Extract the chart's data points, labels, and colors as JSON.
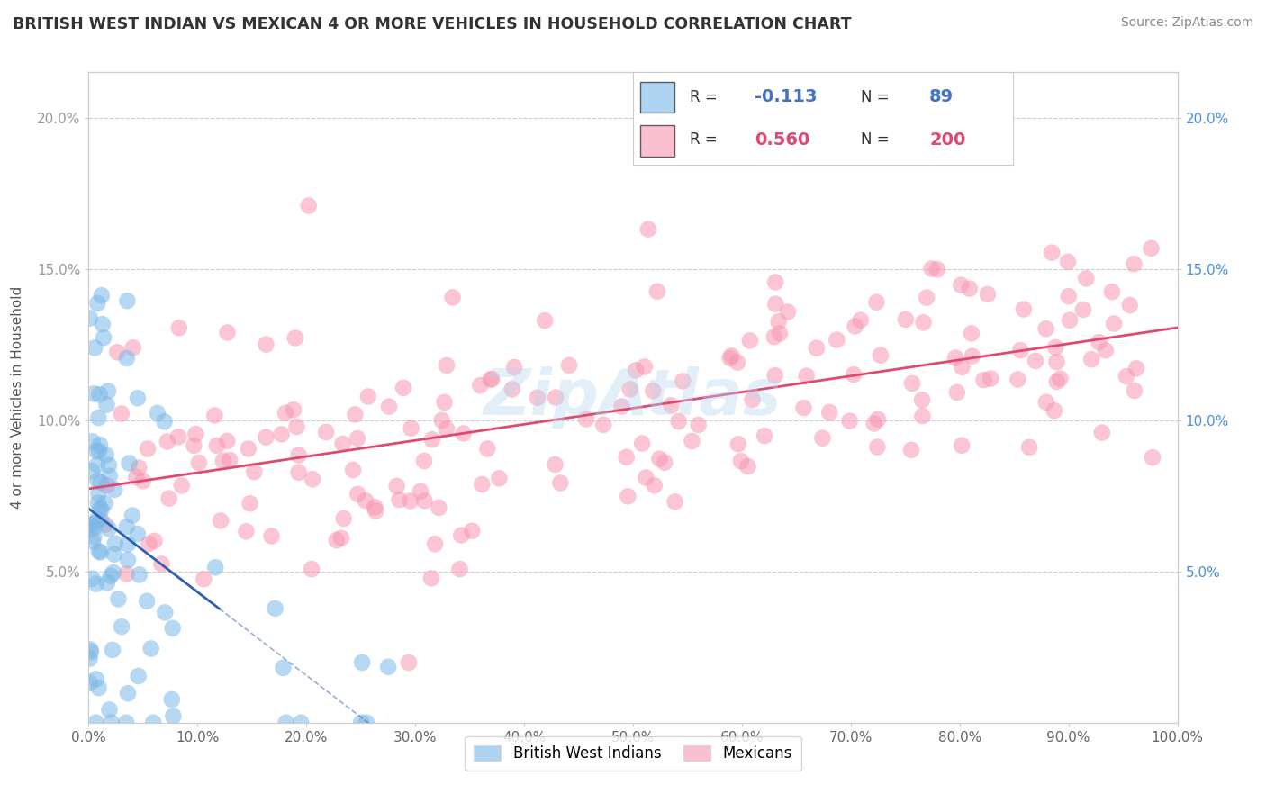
{
  "title": "BRITISH WEST INDIAN VS MEXICAN 4 OR MORE VEHICLES IN HOUSEHOLD CORRELATION CHART",
  "source": "Source: ZipAtlas.com",
  "ylabel": "4 or more Vehicles in Household",
  "yticks": [
    "5.0%",
    "10.0%",
    "15.0%",
    "20.0%"
  ],
  "ytick_vals": [
    0.05,
    0.1,
    0.15,
    0.2
  ],
  "r_bwi": -0.113,
  "r_mex": 0.56,
  "n_bwi": 89,
  "n_mex": 200,
  "xlim": [
    0.0,
    1.0
  ],
  "ylim": [
    0.0,
    0.215
  ],
  "watermark": "ZipAtlas",
  "legend_label1": "British West Indians",
  "legend_label2": "Mexicans",
  "bwi_color": "#7ab8e8",
  "mex_color": "#f896b0",
  "bwi_line_color": "#3060b0",
  "mex_line_color": "#e04870",
  "bwi_R_color": "#4472c4",
  "mex_R_color": "#e04870"
}
